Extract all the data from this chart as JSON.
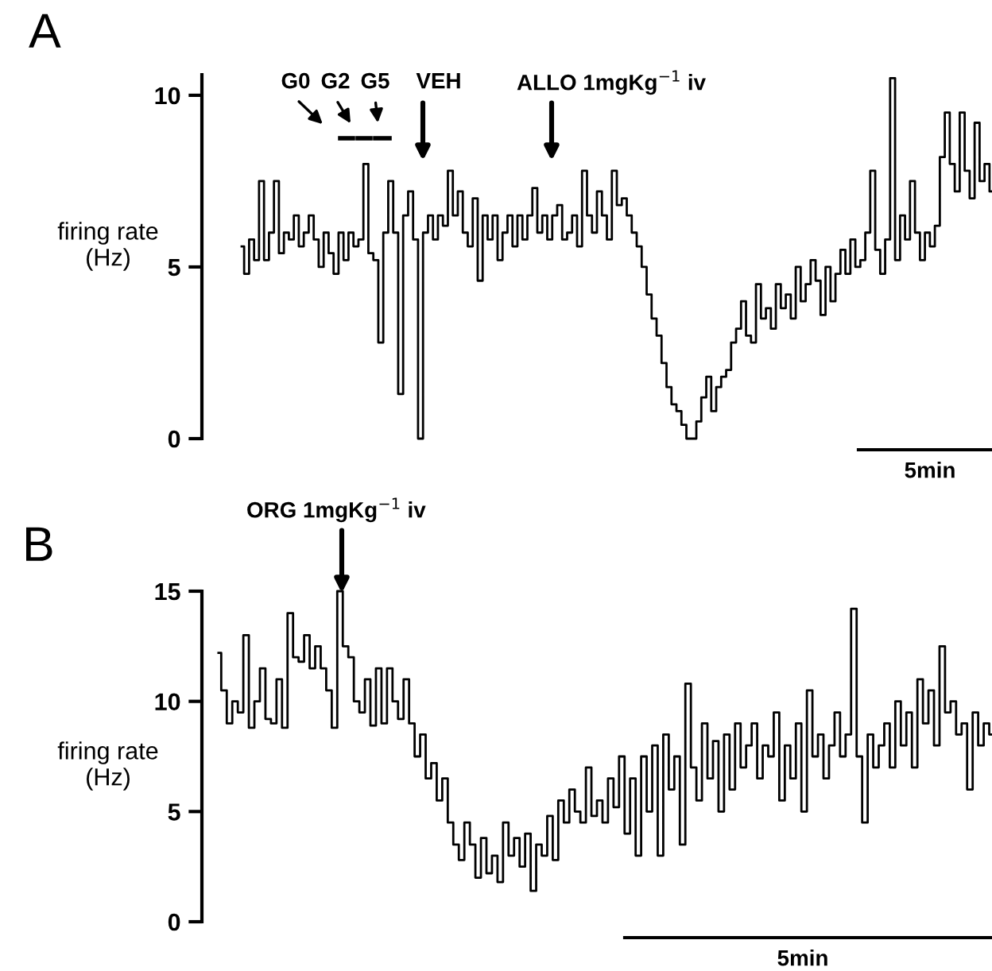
{
  "chart_data": [
    {
      "type": "step",
      "title": "A",
      "ylabel": "firing rate\n(Hz)",
      "ylim": [
        0,
        10.6
      ],
      "yticks": [
        0,
        5,
        10
      ],
      "tick_labels": "y",
      "grid": false,
      "legend": false,
      "annotations": [
        "G0",
        "G2",
        "G5",
        "VEH",
        "ALLO 1mgKg$^{−1}$ iv",
        "5min"
      ],
      "categories": [
        null,
        null,
        null,
        null,
        null,
        null,
        null,
        null,
        null,
        null,
        null,
        null,
        null,
        null,
        null,
        null,
        null,
        null,
        null,
        null,
        null,
        null,
        null,
        null,
        null,
        null,
        null,
        null,
        null,
        null,
        null,
        null,
        null,
        null,
        null,
        null,
        null,
        null,
        null,
        null,
        null,
        null,
        null,
        null,
        null,
        null,
        null,
        null,
        null,
        null,
        null,
        null,
        null,
        null,
        null,
        null,
        null,
        null,
        null,
        null,
        null,
        null,
        null,
        null,
        null,
        null,
        null,
        null,
        null,
        null,
        null,
        null,
        null,
        null,
        null,
        null,
        null,
        null,
        null,
        null,
        null,
        null,
        null,
        null,
        null,
        null,
        null,
        null,
        null,
        null,
        null,
        null,
        null,
        null,
        null,
        null,
        null,
        null,
        null,
        null,
        null,
        null,
        null,
        null,
        null,
        null,
        null,
        null,
        null,
        null,
        null,
        null,
        null,
        null,
        null,
        null,
        null,
        null,
        null,
        null,
        null,
        null,
        null,
        null,
        null,
        null,
        null,
        null,
        null,
        null,
        null,
        null,
        null,
        null,
        null,
        null,
        null,
        null,
        null,
        null,
        null,
        null,
        null,
        null,
        null,
        null,
        null,
        null,
        null,
        null,
        null,
        null
      ],
      "series": [
        {
          "color": "#000000",
          "values": [
            5.6,
            4.8,
            5.8,
            5.2,
            7.5,
            5.2,
            6.0,
            7.5,
            5.4,
            6.0,
            5.8,
            6.5,
            5.6,
            6.0,
            6.5,
            5.8,
            5.0,
            6.0,
            5.4,
            4.8,
            6.0,
            5.2,
            6.0,
            5.6,
            5.8,
            8.0,
            5.4,
            5.2,
            2.8,
            6.0,
            7.5,
            6.0,
            1.3,
            6.5,
            7.2,
            5.8,
            0.0,
            6.0,
            6.5,
            5.8,
            6.5,
            6.2,
            7.8,
            6.5,
            7.2,
            6.0,
            5.6,
            7.0,
            4.6,
            6.5,
            5.8,
            6.5,
            5.2,
            6.0,
            6.5,
            5.6,
            6.5,
            5.8,
            6.5,
            7.3,
            6.0,
            6.5,
            5.8,
            6.5,
            6.8,
            5.8,
            6.0,
            6.5,
            5.6,
            7.8,
            6.5,
            6.0,
            7.2,
            6.5,
            5.8,
            7.8,
            6.8,
            7.0,
            6.5,
            6.0,
            5.6,
            5.0,
            4.2,
            3.5,
            3.0,
            2.2,
            1.5,
            1.0,
            0.8,
            0.4,
            0.0,
            0.0,
            0.5,
            1.2,
            1.8,
            0.8,
            1.5,
            1.8,
            2.0,
            2.8,
            3.2,
            4.0,
            3.0,
            2.8,
            4.5,
            3.5,
            3.8,
            3.2,
            4.5,
            3.8,
            4.2,
            3.5,
            5.0,
            4.0,
            4.5,
            5.2,
            4.6,
            3.6,
            5.0,
            4.0,
            4.8,
            5.5,
            4.8,
            5.8,
            5.0,
            5.2,
            6.0,
            7.8,
            5.5,
            4.8,
            5.8,
            10.5,
            5.2,
            6.5,
            5.8,
            7.5,
            6.0,
            5.2,
            6.0,
            5.6,
            6.2,
            8.2,
            9.5,
            8.0,
            7.2,
            9.5,
            7.8,
            7.0,
            9.2,
            7.5,
            8.0,
            7.2
          ]
        }
      ]
    },
    {
      "type": "step",
      "title": "B",
      "ylabel": "firing rate\n(Hz)",
      "ylim": [
        0,
        15
      ],
      "yticks": [
        0,
        5,
        10,
        15
      ],
      "tick_labels": "y",
      "grid": false,
      "legend": false,
      "annotations": [
        "ORG 1mgKg$^{−1}$ iv",
        "5min"
      ],
      "categories": [
        null,
        null,
        null,
        null,
        null,
        null,
        null,
        null,
        null,
        null,
        null,
        null,
        null,
        null,
        null,
        null,
        null,
        null,
        null,
        null,
        null,
        null,
        null,
        null,
        null,
        null,
        null,
        null,
        null,
        null,
        null,
        null,
        null,
        null,
        null,
        null,
        null,
        null,
        null,
        null,
        null,
        null,
        null,
        null,
        null,
        null,
        null,
        null,
        null,
        null,
        null,
        null,
        null,
        null,
        null,
        null,
        null,
        null,
        null,
        null,
        null,
        null,
        null,
        null,
        null,
        null,
        null,
        null,
        null,
        null,
        null,
        null,
        null,
        null,
        null,
        null,
        null,
        null,
        null,
        null,
        null,
        null,
        null,
        null,
        null,
        null,
        null,
        null,
        null,
        null,
        null,
        null,
        null,
        null,
        null,
        null,
        null,
        null,
        null,
        null,
        null,
        null,
        null,
        null,
        null,
        null,
        null,
        null,
        null,
        null,
        null,
        null,
        null,
        null,
        null,
        null,
        null,
        null,
        null,
        null,
        null,
        null,
        null,
        null,
        null,
        null,
        null,
        null,
        null,
        null,
        null,
        null,
        null,
        null,
        null,
        null,
        null,
        null,
        null,
        null,
        null
      ],
      "series": [
        {
          "color": "#000000",
          "values": [
            12.2,
            10.5,
            9.0,
            10.0,
            9.5,
            13.0,
            8.8,
            10.0,
            11.5,
            9.2,
            9.0,
            11.0,
            8.8,
            14.0,
            12.0,
            11.8,
            13.0,
            11.5,
            12.5,
            11.5,
            10.5,
            8.8,
            15.0,
            12.5,
            12.0,
            10.0,
            9.5,
            11.0,
            8.9,
            11.5,
            9.0,
            11.5,
            10.0,
            9.2,
            11.0,
            9.0,
            7.5,
            8.5,
            6.5,
            7.2,
            5.5,
            6.5,
            4.5,
            3.5,
            2.8,
            4.5,
            3.5,
            2.0,
            3.8,
            2.2,
            3.0,
            1.8,
            4.5,
            3.0,
            3.8,
            2.5,
            4.0,
            1.4,
            3.5,
            3.0,
            4.8,
            2.8,
            5.5,
            4.5,
            6.0,
            5.0,
            4.5,
            7.0,
            4.8,
            5.5,
            4.5,
            6.5,
            5.2,
            7.5,
            4.0,
            6.5,
            3.0,
            7.5,
            5.0,
            8.0,
            3.0,
            8.5,
            6.0,
            7.5,
            3.5,
            10.8,
            7.0,
            5.5,
            9.0,
            6.5,
            8.2,
            5.0,
            8.5,
            6.0,
            9.0,
            7.0,
            8.0,
            9.0,
            6.5,
            8.0,
            7.5,
            9.5,
            5.5,
            8.0,
            6.5,
            9.0,
            5.0,
            10.5,
            7.5,
            8.5,
            6.5,
            8.0,
            9.5,
            7.5,
            8.5,
            14.2,
            7.5,
            4.5,
            8.5,
            7.0,
            8.0,
            9.0,
            7.0,
            10.0,
            8.0,
            9.5,
            7.0,
            11.0,
            9.0,
            10.5,
            8.0,
            12.5,
            9.5,
            10.0,
            8.5,
            9.0,
            6.0,
            9.5,
            8.0,
            9.0,
            8.5
          ]
        }
      ]
    }
  ]
}
